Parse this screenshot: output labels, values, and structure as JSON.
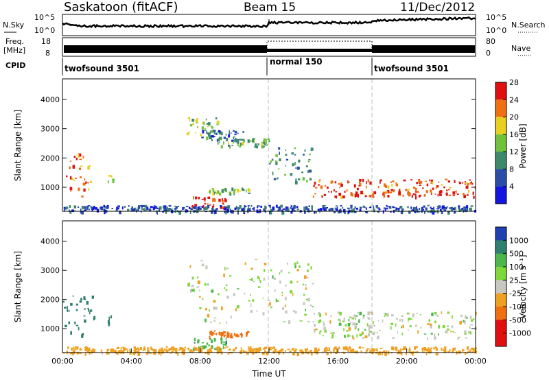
{
  "header": {
    "station": "Saskatoon (fitACF)",
    "beam": "Beam 15",
    "date": "11/Dec/2012"
  },
  "noise_panel": {
    "left_label": "N.Sky",
    "right_label": "N.Search",
    "left_ticks": [
      "10^5",
      "10^0"
    ],
    "right_ticks": [
      "10^5",
      "10^0"
    ]
  },
  "freq_panel": {
    "left_label_1": "Freq.",
    "left_label_2": "[MHz]",
    "left_ticks": [
      "18",
      "8"
    ],
    "right_label": "Nave",
    "right_ticks": [
      "80",
      "0"
    ]
  },
  "cpid_panel": {
    "label": "CPID",
    "segments": [
      "twofsound 3501",
      "normal 150",
      "twofsound 3501"
    ]
  },
  "x_axis": {
    "label": "Time UT",
    "ticks": [
      "00:00",
      "04:00",
      "08:00",
      "12:00",
      "16:00",
      "20:00",
      "00:00"
    ]
  },
  "y_axis": {
    "label": "Slant Range [km]",
    "ticks": [
      "1000",
      "2000",
      "3000",
      "4000"
    ]
  },
  "power_colorbar": {
    "label": "Power [dB]",
    "ticks": [
      "4",
      "8",
      "12",
      "16",
      "20",
      "24",
      "28"
    ],
    "colors": [
      "#1515e0",
      "#2a4ea8",
      "#3d8a6a",
      "#6fc23a",
      "#e8d020",
      "#f07010",
      "#e01010"
    ]
  },
  "velocity_colorbar": {
    "label": "Velocity [m s⁻¹]",
    "ticks": [
      "1000",
      "500",
      "100",
      "25",
      "-25",
      "-100",
      "-500",
      "-1000"
    ],
    "colors": [
      "#1e40b0",
      "#2f7f6f",
      "#4cb84c",
      "#7fd83a",
      "#c8c8c0",
      "#f0a020",
      "#f07010",
      "#e01010"
    ]
  },
  "chart_data": [
    {
      "type": "heatmap",
      "title": "Power",
      "xlabel": "Time UT",
      "ylabel": "Slant Range [km]",
      "xlim": [
        0,
        24
      ],
      "ylim": [
        180,
        4700
      ],
      "units": "dB",
      "features": [
        {
          "t": [
            0.0,
            1.8
          ],
          "range": [
            700,
            2200
          ],
          "power": 22
        },
        {
          "t": [
            2.6,
            2.9
          ],
          "range": [
            1200,
            1500
          ],
          "power": 18
        },
        {
          "t": [
            7.2,
            9.0
          ],
          "range": [
            2800,
            3400
          ],
          "power": 14
        },
        {
          "t": [
            8.0,
            10.5
          ],
          "range": [
            2600,
            3000
          ],
          "power": 8
        },
        {
          "t": [
            9.0,
            12.0
          ],
          "range": [
            2400,
            2700
          ],
          "power": 12
        },
        {
          "t": [
            12.0,
            14.5
          ],
          "range": [
            1200,
            2400
          ],
          "power": 10
        },
        {
          "t": [
            14.5,
            24.0
          ],
          "range": [
            700,
            1300
          ],
          "power": 24
        },
        {
          "t": [
            8.5,
            10.8
          ],
          "range": [
            800,
            1000
          ],
          "power": 14
        },
        {
          "t": [
            7.5,
            9.5
          ],
          "range": [
            300,
            700
          ],
          "power": 26
        },
        {
          "t": [
            0.0,
            24.0
          ],
          "range": [
            180,
            400
          ],
          "power": 6
        }
      ]
    },
    {
      "type": "heatmap",
      "title": "Velocity",
      "xlabel": "Time UT",
      "ylabel": "Slant Range [km]",
      "xlim": [
        0,
        24
      ],
      "ylim": [
        180,
        4700
      ],
      "units": "m/s",
      "features": [
        {
          "t": [
            0.0,
            1.8
          ],
          "range": [
            700,
            2200
          ],
          "velocity": 200
        },
        {
          "t": [
            2.6,
            2.9
          ],
          "range": [
            1200,
            1500
          ],
          "velocity": 300
        },
        {
          "t": [
            7.2,
            14.5
          ],
          "range": [
            1200,
            3400
          ],
          "velocity": 0
        },
        {
          "t": [
            14.5,
            24.0
          ],
          "range": [
            700,
            1600
          ],
          "velocity": 0
        },
        {
          "t": [
            8.5,
            10.8
          ],
          "range": [
            750,
            950
          ],
          "velocity": -200
        },
        {
          "t": [
            7.5,
            9.5
          ],
          "range": [
            300,
            700
          ],
          "velocity": 80
        },
        {
          "t": [
            0.0,
            24.0
          ],
          "range": [
            180,
            400
          ],
          "velocity": -60
        }
      ]
    }
  ]
}
